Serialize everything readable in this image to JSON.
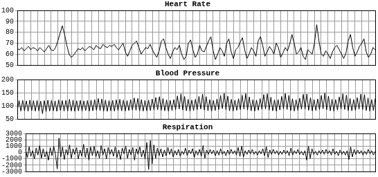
{
  "chart_data": [
    {
      "type": "line",
      "title": "Heart Rate",
      "color": "#000000",
      "grid": true,
      "tick_labels": "y",
      "ylim": [
        50,
        100
      ],
      "yticks": [
        50,
        60,
        70,
        80,
        90,
        100
      ],
      "values": [
        65,
        64,
        66,
        63,
        65,
        67,
        64,
        66,
        65,
        63,
        66,
        64,
        62,
        65,
        68,
        64,
        63,
        66,
        72,
        79,
        86,
        78,
        68,
        60,
        57,
        59,
        62,
        65,
        64,
        66,
        63,
        65,
        67,
        66,
        64,
        68,
        66,
        65,
        69,
        67,
        66,
        68,
        67,
        69,
        66,
        64,
        67,
        70,
        62,
        58,
        63,
        68,
        70,
        72,
        66,
        60,
        63,
        66,
        65,
        69,
        64,
        60,
        57,
        63,
        72,
        74,
        66,
        60,
        56,
        62,
        66,
        64,
        68,
        60,
        55,
        58,
        70,
        73,
        64,
        57,
        60,
        68,
        63,
        62,
        67,
        72,
        76,
        63,
        55,
        60,
        66,
        63,
        58,
        70,
        74,
        62,
        56,
        64,
        66,
        71,
        75,
        64,
        56,
        60,
        66,
        63,
        58,
        72,
        76,
        68,
        58,
        62,
        67,
        64,
        60,
        70,
        66,
        57,
        61,
        66,
        63,
        69,
        78,
        70,
        60,
        62,
        66,
        58,
        55,
        64,
        62,
        60,
        70,
        87,
        72,
        60,
        58,
        63,
        60,
        56,
        62,
        66,
        68,
        64,
        60,
        56,
        61,
        72,
        78,
        66,
        58,
        62,
        67,
        70,
        74,
        62,
        57,
        60,
        66,
        64
      ]
    },
    {
      "type": "line",
      "title": "Blood Pressure",
      "color": "#000000",
      "grid": true,
      "tick_labels": "y",
      "ylim": [
        50,
        200
      ],
      "yticks": [
        50,
        100,
        150,
        200
      ],
      "values": [
        82,
        120,
        80,
        121,
        81,
        119,
        79,
        122,
        82,
        120,
        80,
        121,
        81,
        118,
        70,
        120,
        78,
        122,
        80,
        121,
        81,
        119,
        79,
        123,
        82,
        120,
        80,
        121,
        81,
        125,
        80,
        122,
        79,
        120,
        81,
        121,
        80,
        119,
        82,
        120,
        80,
        122,
        81,
        124,
        83,
        128,
        82,
        126,
        80,
        122,
        79,
        120,
        81,
        121,
        80,
        123,
        82,
        125,
        81,
        122,
        80,
        120,
        82,
        124,
        84,
        130,
        83,
        128,
        81,
        124,
        80,
        121,
        81,
        122,
        82,
        126,
        84,
        132,
        85,
        135,
        83,
        128,
        81,
        123,
        80,
        121,
        82,
        124,
        85,
        138,
        88,
        146,
        84,
        136,
        81,
        125,
        80,
        122,
        82,
        125,
        85,
        136,
        88,
        145,
        84,
        135,
        81,
        124,
        80,
        121,
        82,
        126,
        86,
        140,
        89,
        148,
        85,
        137,
        81,
        125,
        80,
        122,
        83,
        127,
        86,
        141,
        88,
        147,
        84,
        134,
        81,
        124,
        80,
        122,
        83,
        128,
        87,
        143,
        88,
        146,
        84,
        133,
        81,
        123,
        80,
        124,
        84,
        136,
        88,
        147,
        86,
        140,
        82,
        127,
        80,
        123,
        83,
        129,
        87,
        144,
        88,
        145,
        83,
        131,
        81,
        124,
        82,
        126,
        86,
        140,
        89,
        149,
        85,
        137,
        81,
        125,
        80,
        124,
        84,
        134,
        88,
        146,
        86,
        141,
        82,
        128,
        81,
        124,
        83,
        131,
        87,
        145,
        86,
        143,
        82,
        130,
        80,
        124,
        82,
        128
      ]
    },
    {
      "type": "line",
      "title": "Respiration",
      "color": "#000000",
      "grid": true,
      "tick_labels": "y",
      "ylim": [
        -3000,
        3000
      ],
      "yticks": [
        -3000,
        -2000,
        -1000,
        0,
        1000,
        2000,
        3000
      ],
      "values": [
        500,
        -800,
        900,
        -600,
        300,
        -1000,
        700,
        -400,
        1100,
        -900,
        600,
        -700,
        200,
        -1200,
        800,
        -500,
        1000,
        -300,
        -2600,
        2300,
        -700,
        900,
        -1100,
        500,
        -400,
        1200,
        -900,
        600,
        -300,
        800,
        -1000,
        400,
        -600,
        1300,
        -800,
        700,
        -1200,
        900,
        -500,
        1000,
        -700,
        300,
        -900,
        1100,
        -400,
        600,
        -1000,
        800,
        -300,
        500,
        -600,
        900,
        -800,
        400,
        -1100,
        700,
        -200,
        1000,
        -900,
        500,
        -400,
        800,
        -1200,
        600,
        -300,
        900,
        -700,
        400,
        -1000,
        1600,
        -2700,
        1900,
        -1800,
        1200,
        -900,
        700,
        -500,
        600,
        -700,
        400,
        -500,
        800,
        -300,
        600,
        -700,
        300,
        -400,
        500,
        -600,
        200,
        -300,
        700,
        -500,
        400,
        -200,
        600,
        -800,
        300,
        -400,
        500,
        -600,
        1100,
        -900,
        400,
        -300,
        500,
        -200,
        400,
        -500,
        300,
        -400,
        600,
        -300,
        200,
        -500,
        400,
        -300,
        500,
        -200,
        300,
        -400,
        800,
        -600,
        1000,
        -700,
        300,
        -300,
        400,
        -200,
        500,
        -300,
        200,
        -400,
        300,
        -200,
        600,
        -500,
        900,
        -800,
        400,
        -300,
        500,
        -200,
        300,
        -400,
        200,
        -300,
        400,
        -200,
        300,
        -500,
        700,
        -400,
        300,
        -200,
        500,
        -300,
        200,
        -400,
        300,
        -1200,
        1000,
        -900,
        600,
        -300,
        200,
        -400,
        300,
        -200,
        400,
        -300,
        500,
        -200,
        300,
        -400,
        600,
        -300,
        200,
        -500,
        400,
        -300,
        200,
        -400,
        300,
        -1100,
        900,
        -700,
        500,
        -300,
        400,
        -200,
        300,
        -400,
        200,
        -300,
        500,
        -200,
        300,
        -400,
        200
      ]
    }
  ]
}
